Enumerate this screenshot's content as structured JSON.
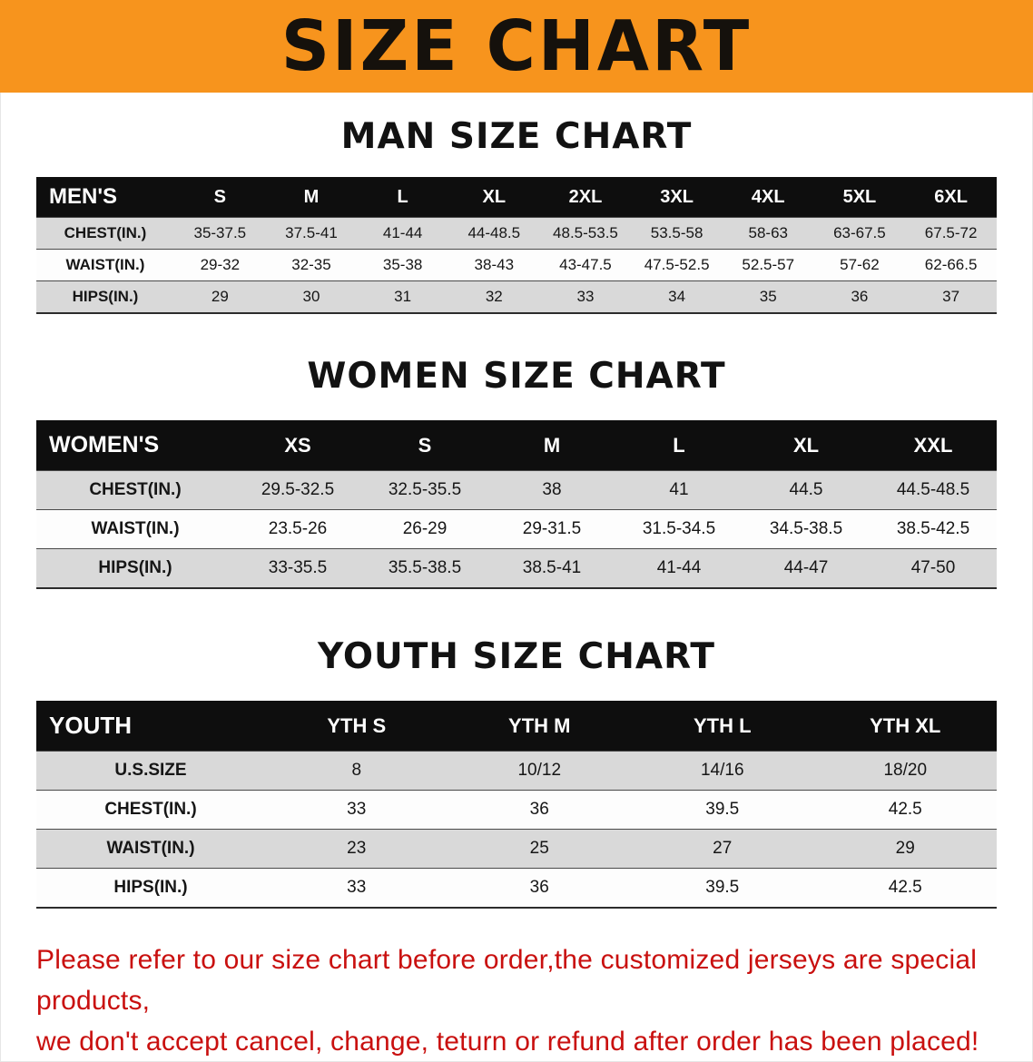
{
  "banner": {
    "title": "SIZE CHART"
  },
  "sections": [
    {
      "id": "men",
      "heading": "MAN SIZE CHART",
      "table": {
        "header": [
          "MEN'S",
          "S",
          "M",
          "L",
          "XL",
          "2XL",
          "3XL",
          "4XL",
          "5XL",
          "6XL"
        ],
        "rows": [
          {
            "label": "CHEST(IN.)",
            "values": [
              "35-37.5",
              "37.5-41",
              "41-44",
              "44-48.5",
              "48.5-53.5",
              "53.5-58",
              "58-63",
              "63-67.5",
              "67.5-72"
            ]
          },
          {
            "label": "WAIST(IN.)",
            "values": [
              "29-32",
              "32-35",
              "35-38",
              "38-43",
              "43-47.5",
              "47.5-52.5",
              "52.5-57",
              "57-62",
              "62-66.5"
            ]
          },
          {
            "label": "HIPS(IN.)",
            "values": [
              "29",
              "30",
              "31",
              "32",
              "33",
              "34",
              "35",
              "36",
              "37"
            ]
          }
        ]
      }
    },
    {
      "id": "women",
      "heading": "WOMEN SIZE CHART",
      "table": {
        "header": [
          "WOMEN'S",
          "XS",
          "S",
          "M",
          "L",
          "XL",
          "XXL"
        ],
        "rows": [
          {
            "label": "CHEST(IN.)",
            "values": [
              "29.5-32.5",
              "32.5-35.5",
              "38",
              "41",
              "44.5",
              "44.5-48.5"
            ]
          },
          {
            "label": "WAIST(IN.)",
            "values": [
              "23.5-26",
              "26-29",
              "29-31.5",
              "31.5-34.5",
              "34.5-38.5",
              "38.5-42.5"
            ]
          },
          {
            "label": "HIPS(IN.)",
            "values": [
              "33-35.5",
              "35.5-38.5",
              "38.5-41",
              "41-44",
              "44-47",
              "47-50"
            ]
          }
        ]
      }
    },
    {
      "id": "youth",
      "heading": "YOUTH SIZE CHART",
      "table": {
        "header": [
          "YOUTH",
          "YTH S",
          "YTH M",
          "YTH L",
          "YTH XL"
        ],
        "rows": [
          {
            "label": "U.S.SIZE",
            "values": [
              "8",
              "10/12",
              "14/16",
              "18/20"
            ]
          },
          {
            "label": "CHEST(IN.)",
            "values": [
              "33",
              "36",
              "39.5",
              "42.5"
            ]
          },
          {
            "label": "WAIST(IN.)",
            "values": [
              "23",
              "25",
              "27",
              "29"
            ]
          },
          {
            "label": "HIPS(IN.)",
            "values": [
              "33",
              "36",
              "39.5",
              "42.5"
            ]
          }
        ]
      }
    }
  ],
  "footer": {
    "line1": "Please refer to our size chart before order,the customized jerseys are special products,",
    "line2": "we don't accept cancel, change, teturn or refund after order has been placed!"
  },
  "colors": {
    "banner_orange": "#F7941D",
    "header_black": "#0E0E0E",
    "row_gray": "#D9D9D9",
    "notice_red": "#C9100F"
  }
}
